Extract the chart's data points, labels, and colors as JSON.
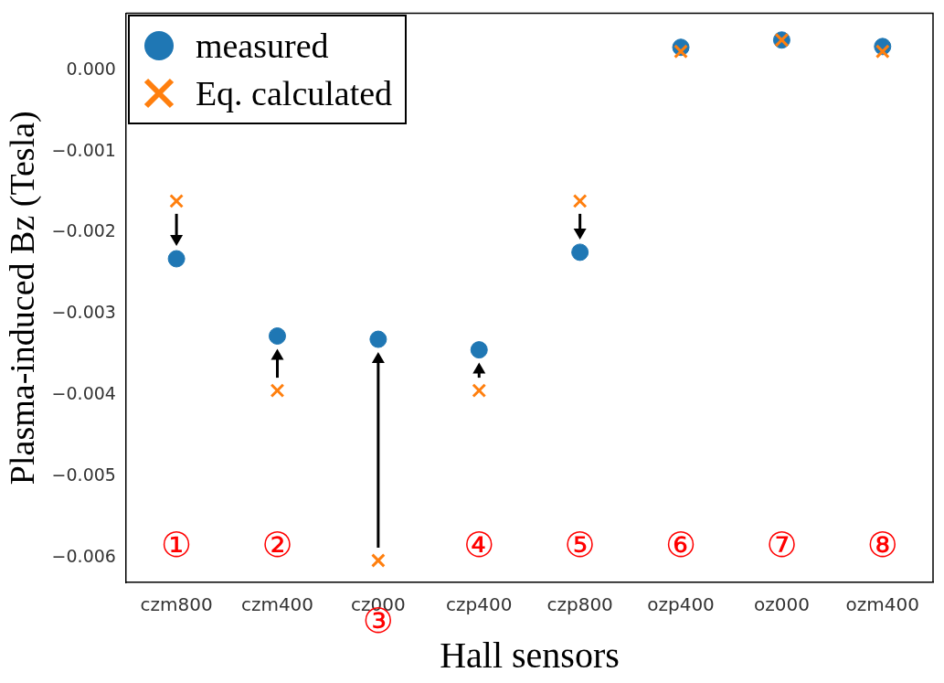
{
  "chart_data": {
    "type": "scatter",
    "xlabel": "Hall sensors",
    "ylabel": "Plasma-induced Bz (Tesla)",
    "categories": [
      "czm800",
      "czm400",
      "cz000",
      "czp400",
      "czp800",
      "ozp400",
      "oz000",
      "ozm400"
    ],
    "series": [
      {
        "name": "measured",
        "color": "#1f77b4",
        "marker": "circle",
        "values": [
          -0.00232,
          -0.00327,
          -0.00331,
          -0.00344,
          -0.00224,
          0.00028,
          0.00037,
          0.00029
        ]
      },
      {
        "name": "Eq. calculated",
        "color": "#ff7f0e",
        "marker": "cross",
        "values": [
          -0.00161,
          -0.00394,
          -0.00603,
          -0.00394,
          -0.00161,
          0.00023,
          0.00037,
          0.00023
        ]
      }
    ],
    "ylim": [
      -0.0063,
      0.0007
    ],
    "yticks": [
      {
        "value": 0,
        "label": "0.000"
      },
      {
        "value": -0.001,
        "label": "−0.001"
      },
      {
        "value": -0.002,
        "label": "−0.002"
      },
      {
        "value": -0.003,
        "label": "−0.003"
      },
      {
        "value": -0.004,
        "label": "−0.004"
      },
      {
        "value": -0.005,
        "label": "−0.005"
      },
      {
        "value": -0.006,
        "label": "−0.006"
      }
    ],
    "grid": false,
    "legend": "top left",
    "annotations": [
      "①",
      "②",
      "③",
      "④",
      "⑤",
      "⑥",
      "⑦",
      "⑧"
    ]
  }
}
